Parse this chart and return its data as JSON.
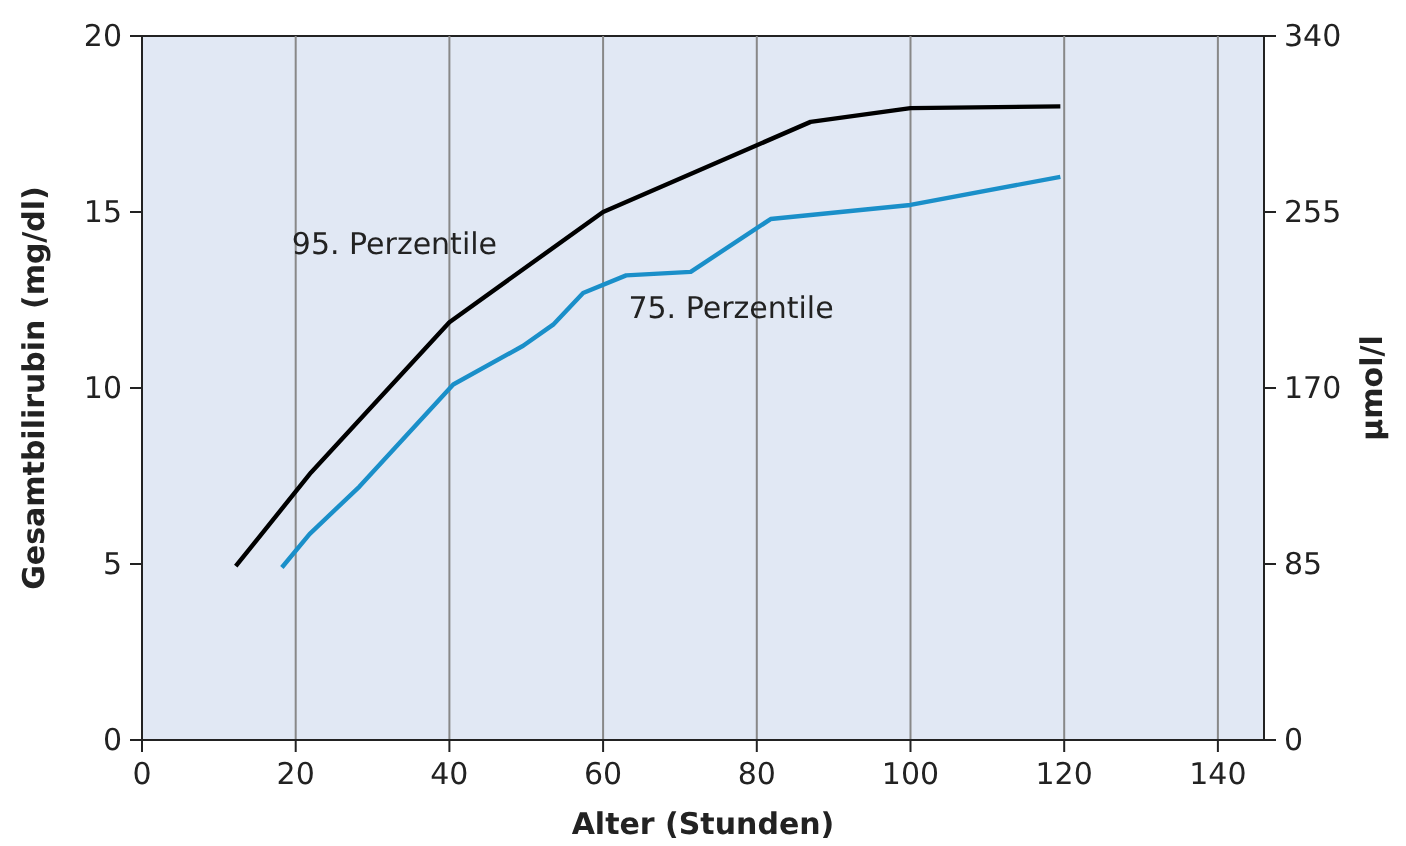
{
  "chart_data": {
    "type": "line",
    "xlabel": "Alter (Stunden)",
    "ylabel": "Gesamtbilirubin (mg/dl)",
    "y2label": "µmol/l",
    "xlim": [
      0,
      146
    ],
    "xticks": [
      0,
      20,
      40,
      60,
      80,
      100,
      120,
      140
    ],
    "ylim": [
      0,
      20
    ],
    "yticks": [
      0,
      5,
      10,
      15,
      20
    ],
    "y2lim": [
      0,
      340
    ],
    "y2ticks": [
      0,
      85,
      170,
      255,
      340
    ],
    "grid": "x",
    "marker": "none",
    "line_style": "solid",
    "series": [
      {
        "color": "#000000",
        "x": [
          12.2,
          22,
          40,
          60,
          87,
          100,
          119.5
        ],
        "values": [
          4.94,
          7.6,
          11.87,
          15.0,
          17.56,
          17.95,
          18.0
        ]
      },
      {
        "color": "#1a8fc9",
        "x": [
          18.2,
          21.8,
          28.3,
          40.5,
          49.6,
          53.5,
          57.4,
          63,
          71.4,
          81.8,
          100,
          119.5
        ],
        "values": [
          4.9,
          5.85,
          7.2,
          10.1,
          11.2,
          11.8,
          12.7,
          13.2,
          13.3,
          14.8,
          15.2,
          16.0
        ]
      }
    ],
    "annotations": [
      "95. Perzentile",
      "75. Perzentile"
    ]
  }
}
